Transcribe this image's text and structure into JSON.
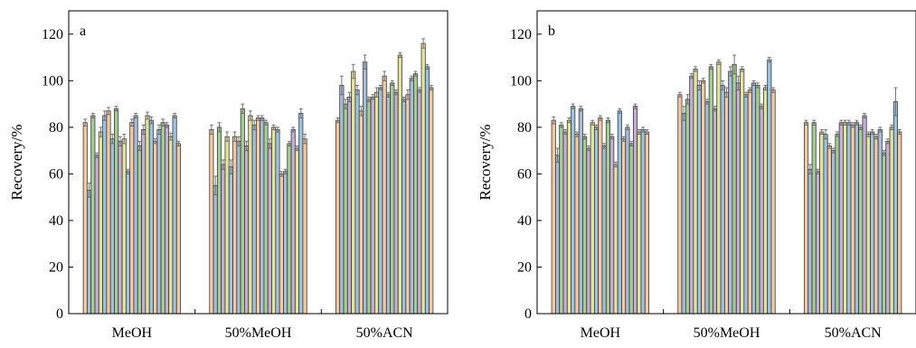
{
  "colors": {
    "palette": [
      "#f2c9a1",
      "#a8bcd8",
      "#a3cd93",
      "#c4aed6",
      "#e4e39a",
      "#9cc4e0"
    ],
    "stroke": "#3a3a3a",
    "error_bar": "#666666"
  },
  "chart_data": [
    {
      "type": "bar",
      "panel_label": "a",
      "ylabel": "Recovery/%",
      "xlabel": "",
      "ylim": [
        0,
        130
      ],
      "yticks": [
        0,
        20,
        40,
        60,
        80,
        100,
        120
      ],
      "categories": [
        "MeOH",
        "50%MeOH",
        "50%ACN"
      ],
      "grid": false,
      "legend": "none",
      "groups": [
        {
          "name": "MeOH",
          "values": [
            82,
            53,
            85,
            68,
            78,
            85,
            87,
            75,
            88,
            74,
            75,
            61,
            82,
            85,
            72,
            79,
            85,
            83,
            74,
            79,
            82,
            81,
            76,
            85,
            73
          ],
          "errors": [
            1.5,
            3,
            1,
            1,
            2,
            2,
            1.5,
            2,
            1,
            2,
            2,
            1,
            1.5,
            1,
            2,
            2,
            1.5,
            1.5,
            1,
            2,
            1.5,
            1,
            1.5,
            1,
            1
          ]
        },
        {
          "name": "50%MeOH",
          "values": [
            79,
            55,
            80,
            64,
            76,
            63,
            76,
            74,
            88,
            72,
            85,
            81,
            84,
            84,
            82,
            73,
            80,
            79,
            60,
            61,
            73,
            79,
            71,
            86,
            75
          ],
          "errors": [
            2,
            4,
            2,
            2,
            2,
            3,
            2,
            2,
            2,
            2,
            2,
            2,
            1,
            1,
            1,
            2,
            1,
            1,
            1,
            1,
            1,
            1,
            1,
            2,
            2
          ]
        },
        {
          "name": "50%ACN",
          "values": [
            83,
            98,
            90,
            93,
            104,
            96,
            87,
            108,
            92,
            93,
            95,
            97,
            102,
            94,
            99,
            95,
            111,
            92,
            94,
            101,
            103,
            96,
            116,
            106,
            97
          ],
          "errors": [
            1,
            4,
            2,
            2,
            3,
            2,
            2,
            3,
            1,
            1,
            2,
            1,
            2,
            1,
            1,
            1,
            1,
            1,
            2,
            1,
            1,
            1,
            2,
            1,
            1
          ]
        }
      ]
    },
    {
      "type": "bar",
      "panel_label": "b",
      "ylabel": "Recovery/%",
      "xlabel": "",
      "ylim": [
        0,
        130
      ],
      "yticks": [
        0,
        20,
        40,
        60,
        80,
        100,
        120
      ],
      "categories": [
        "MeOH",
        "50%MeOH",
        "50%ACN"
      ],
      "grid": false,
      "legend": "none",
      "groups": [
        {
          "name": "MeOH",
          "values": [
            83,
            68,
            81,
            78,
            83,
            89,
            77,
            88,
            76,
            71,
            82,
            80,
            84,
            72,
            83,
            76,
            64,
            87,
            75,
            80,
            73,
            89,
            78,
            79,
            78
          ],
          "errors": [
            1.5,
            3,
            1,
            1,
            1,
            1,
            1,
            1,
            1,
            1,
            1,
            1,
            1,
            1,
            1,
            1,
            1,
            1,
            1,
            1,
            1,
            1,
            1,
            1,
            1
          ]
        },
        {
          "name": "50%MeOH",
          "values": [
            94,
            86,
            92,
            102,
            105,
            98,
            100,
            91,
            106,
            88,
            108,
            98,
            95,
            104,
            107,
            99,
            105,
            94,
            96,
            99,
            98,
            89,
            97,
            109,
            96
          ],
          "errors": [
            1,
            3,
            2,
            1,
            1,
            2,
            1,
            1,
            1,
            1,
            1,
            2,
            2,
            2,
            4,
            3,
            1,
            1,
            1,
            1,
            1,
            1,
            1,
            1,
            1
          ]
        },
        {
          "name": "50%ACN",
          "values": [
            82,
            62,
            82,
            61,
            78,
            77,
            72,
            70,
            77,
            82,
            82,
            82,
            81,
            82,
            80,
            85,
            77,
            78,
            76,
            79,
            69,
            74,
            80,
            91,
            78
          ],
          "errors": [
            1,
            2,
            1,
            1,
            1,
            2,
            1,
            1,
            1,
            1,
            1,
            1,
            1,
            1,
            1,
            1,
            1,
            1,
            1,
            1,
            1,
            1,
            1,
            6,
            1
          ]
        }
      ]
    }
  ]
}
